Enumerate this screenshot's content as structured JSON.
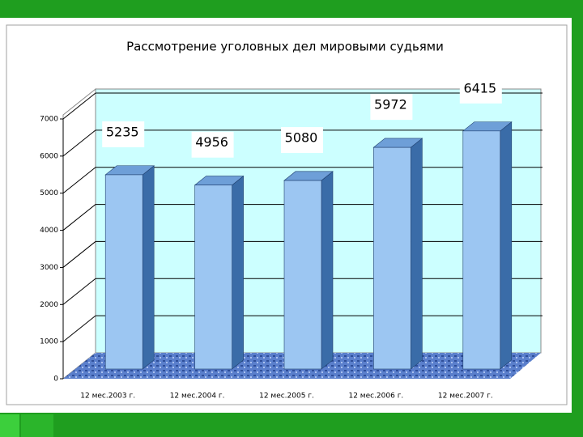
{
  "chart_data": {
    "type": "bar3d",
    "title": "Рассмотрение уголовных дел мировыми судьями",
    "categories": [
      "12 мес.2003 г.",
      "12 мес.2004 г.",
      "12 мес.2005 г.",
      "12 мес.2006 г.",
      "12 мес.2007 г."
    ],
    "values": [
      5235,
      4956,
      5080,
      5972,
      6415
    ],
    "color": "#9cc6f2",
    "ylim": [
      0,
      7000
    ],
    "yticks": [
      0,
      1000,
      2000,
      3000,
      4000,
      5000,
      6000,
      7000
    ],
    "grid": true
  }
}
